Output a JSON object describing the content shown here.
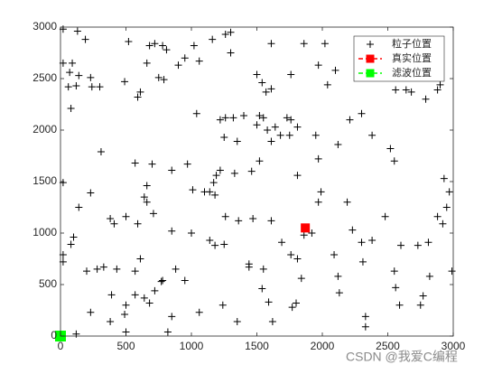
{
  "chart_data": {
    "type": "scatter",
    "xlim": [
      0,
      3000
    ],
    "xticks": [
      0,
      500,
      1000,
      1500,
      2000,
      2500,
      3000
    ],
    "ylim": [
      0,
      3000
    ],
    "yticks": [
      0,
      500,
      1000,
      1500,
      2000,
      2500,
      3000
    ],
    "legend": "top-right",
    "annotation": "CSDN @我爱C编程",
    "series": [
      {
        "name": "粒子位置",
        "color": "#000000",
        "marker": "+",
        "x": [
          20,
          130,
          190,
          20,
          90,
          70,
          140,
          230,
          120,
          60,
          240,
          300,
          490,
          520,
          680,
          720,
          780,
          810,
          750,
          790,
          900,
          950,
          1020,
          1060,
          1160,
          1260,
          1300,
          1300,
          660,
          610,
          590,
          80,
          1040,
          1260,
          1220,
          1320,
          1400,
          1520,
          1550,
          1500,
          1580,
          1610,
          1640,
          1570,
          1540,
          1610,
          1500,
          1610,
          1860,
          2020,
          1970,
          1760,
          2040,
          2100,
          2210,
          2300,
          2380,
          2380,
          2440,
          2400,
          2560,
          2640,
          2680,
          2880,
          2900,
          2850,
          2790,
          2520,
          2550,
          2930,
          1950,
          2120,
          1970,
          1810,
          1730,
          1760,
          1810,
          1750,
          1680,
          1250,
          1350,
          1520,
          1460,
          1330,
          1220,
          1190,
          1170,
          1140,
          1180,
          1100,
          1010,
          970,
          850,
          700,
          570,
          310,
          230,
          20,
          140,
          380,
          410,
          500,
          590,
          710,
          660,
          640,
          660,
          850,
          1000,
          1140,
          1180,
          1250,
          1260,
          1360,
          1470,
          1610,
          1690,
          1760,
          1810,
          1860,
          1920,
          1990,
          1970,
          2190,
          2230,
          2300,
          2380,
          2480,
          2600,
          2730,
          2810,
          2880,
          2920,
          2970,
          2950,
          2990,
          2770,
          2750,
          2550,
          2560,
          2590,
          2310,
          2090,
          2120,
          2130,
          1840,
          1800,
          1770,
          1540,
          1590,
          1620,
          1440,
          1440,
          1240,
          1350,
          1060,
          850,
          820,
          720,
          680,
          640,
          570,
          500,
          490,
          390,
          380,
          230,
          200,
          280,
          330,
          430,
          570,
          610,
          780,
          950,
          770,
          20,
          20,
          80,
          100,
          120,
          500,
          880,
          1550,
          2330,
          2330,
          2820
        ],
        "values": [
          2980,
          2960,
          2880,
          2650,
          2650,
          2560,
          2530,
          2510,
          2430,
          2420,
          2420,
          2420,
          2470,
          2860,
          2820,
          2840,
          2820,
          2780,
          2510,
          2490,
          2630,
          2700,
          2820,
          2670,
          2880,
          2930,
          2950,
          2750,
          2650,
          2370,
          2320,
          2210,
          2160,
          2120,
          2100,
          2120,
          2140,
          2140,
          2120,
          2050,
          2000,
          1890,
          2030,
          2370,
          2460,
          2400,
          2540,
          2840,
          2840,
          2840,
          2630,
          2540,
          2440,
          2580,
          2100,
          2160,
          2560,
          1950,
          2820,
          2810,
          2390,
          2390,
          2370,
          2390,
          2440,
          2540,
          2300,
          1820,
          1700,
          1530,
          1950,
          1860,
          1720,
          1560,
          2120,
          2100,
          2030,
          1950,
          1950,
          1930,
          1890,
          1700,
          1600,
          1580,
          1610,
          1560,
          1490,
          1400,
          1370,
          1400,
          1420,
          1670,
          1610,
          1670,
          1680,
          1790,
          1390,
          1490,
          1250,
          1140,
          1090,
          1160,
          1090,
          1190,
          1460,
          1350,
          1300,
          1020,
          1000,
          930,
          880,
          890,
          1160,
          1120,
          1140,
          1120,
          910,
          790,
          750,
          980,
          1000,
          1400,
          1300,
          1300,
          1030,
          910,
          930,
          1160,
          880,
          880,
          910,
          1160,
          1090,
          1400,
          1250,
          630,
          390,
          300,
          630,
          470,
          300,
          720,
          790,
          580,
          420,
          560,
          320,
          280,
          460,
          330,
          140,
          670,
          700,
          300,
          140,
          230,
          190,
          40,
          440,
          320,
          370,
          400,
          300,
          210,
          400,
          140,
          230,
          630,
          650,
          670,
          650,
          630,
          750,
          540,
          540,
          530,
          790,
          720,
          890,
          960,
          20,
          40,
          650,
          650,
          190,
          90,
          580
        ]
      },
      {
        "name": "真实位置",
        "color": "#ff0000",
        "marker": "s",
        "x": [
          1870
        ],
        "values": [
          1050
        ]
      },
      {
        "name": "滤波位置",
        "color": "#00ff00",
        "marker": "s",
        "x": [
          0
        ],
        "values": [
          0
        ]
      }
    ]
  }
}
